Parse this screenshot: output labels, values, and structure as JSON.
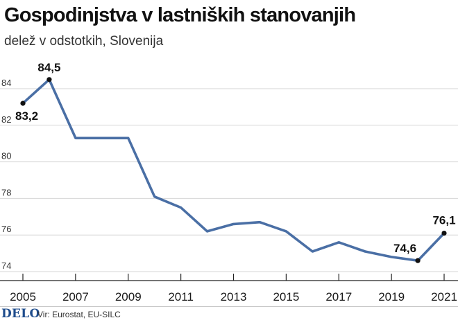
{
  "header": {
    "title": "Gospodinjstva v lastniških stanovanjih",
    "subtitle": "delež v odstotkih, Slovenija"
  },
  "footer": {
    "logo": "DELO",
    "source": "Vir: Eurostat, EU-SILC"
  },
  "colors": {
    "line": "#4a6fa5",
    "marker": "#111111",
    "grid": "#d6d6d6"
  },
  "chart_data": {
    "type": "line",
    "title": "Gospodinjstva v lastniških stanovanjih",
    "subtitle": "delež v odstotkih, Slovenija",
    "x": [
      2005,
      2006,
      2007,
      2008,
      2009,
      2010,
      2011,
      2012,
      2013,
      2014,
      2015,
      2016,
      2017,
      2018,
      2019,
      2020,
      2021
    ],
    "series": [
      {
        "values": [
          83.2,
          84.5,
          81.3,
          81.3,
          81.3,
          78.1,
          77.5,
          76.2,
          76.6,
          76.7,
          76.2,
          75.1,
          75.6,
          75.1,
          74.8,
          74.6,
          76.1
        ]
      }
    ],
    "xticks": [
      "2005",
      "2007",
      "2009",
      "2011",
      "2013",
      "2015",
      "2017",
      "2019",
      "2021"
    ],
    "yticks": [
      "74",
      "76",
      "78",
      "80",
      "82",
      "84"
    ],
    "ylim": [
      74,
      85
    ],
    "xlim": [
      2005,
      2021
    ],
    "grid": "horizontal",
    "annotations": [
      {
        "x": 2005,
        "label": "83,2",
        "marker": true
      },
      {
        "x": 2006,
        "label": "84,5",
        "marker": true
      },
      {
        "x": 2020,
        "label": "74,6",
        "marker": true
      },
      {
        "x": 2021,
        "label": "76,1",
        "marker": true
      }
    ]
  }
}
